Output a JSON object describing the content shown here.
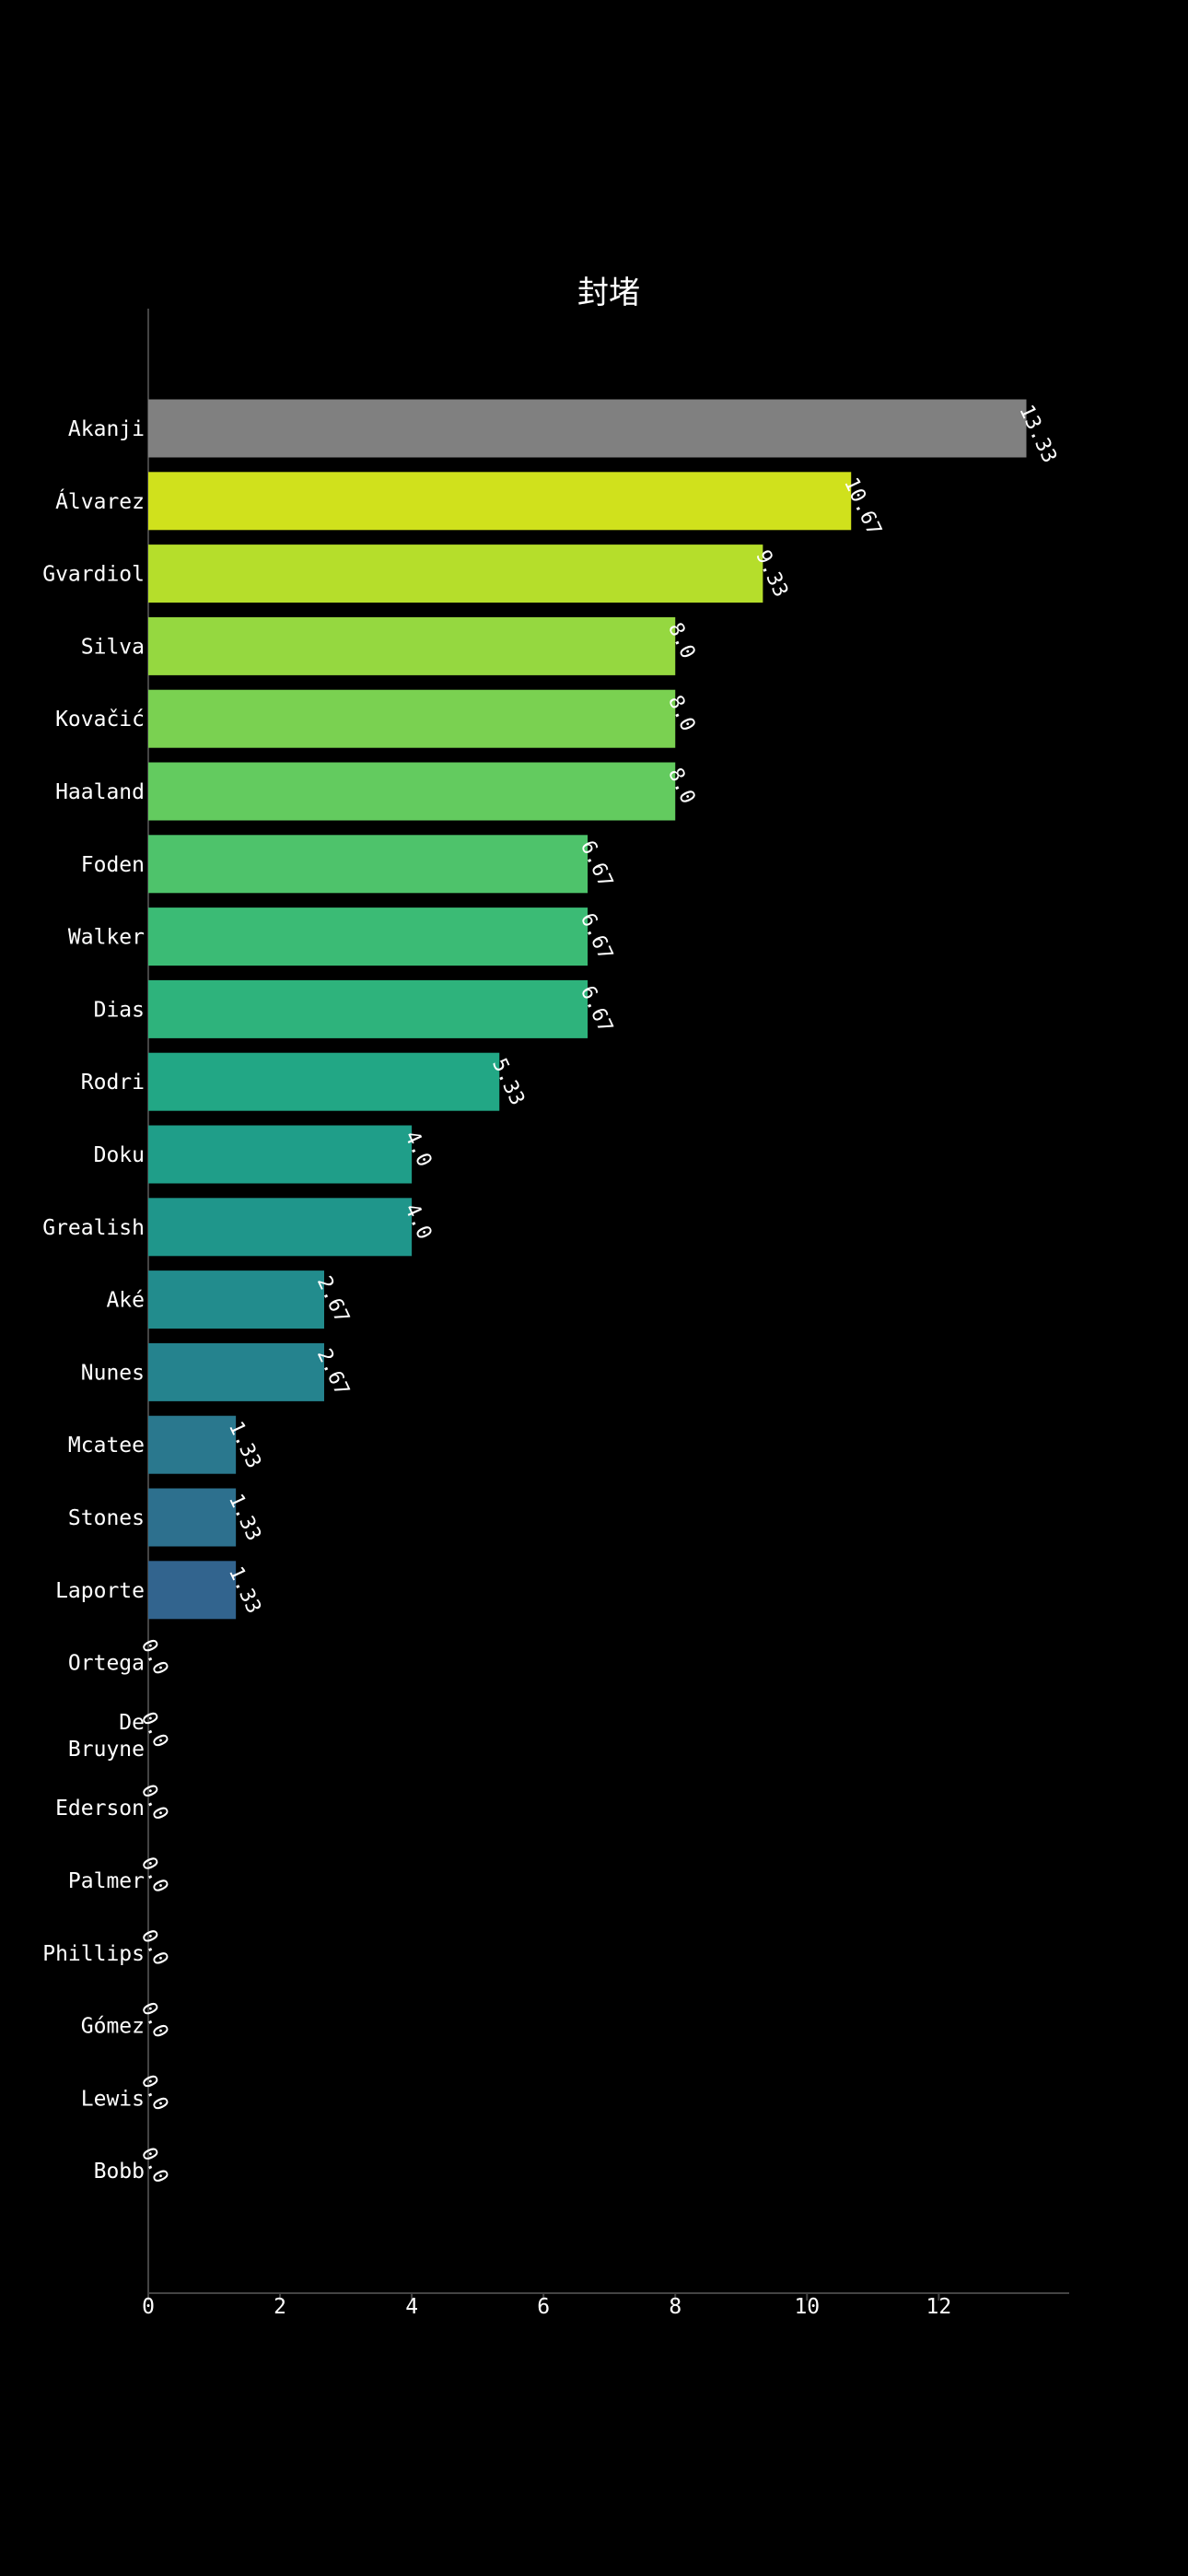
{
  "chart_data": {
    "type": "bar",
    "orientation": "horizontal",
    "title": "封堵",
    "xlabel": "",
    "ylabel": "",
    "xlim": [
      0,
      13.98
    ],
    "xticks": [
      0,
      2,
      4,
      6,
      8,
      10,
      12
    ],
    "grid": false,
    "categories": [
      "Akanji",
      "Álvarez",
      "Gvardiol",
      "Silva",
      "Kovačić",
      "Haaland",
      "Foden",
      "Walker",
      "Dias",
      "Rodri",
      "Doku",
      "Grealish",
      "Aké",
      "Nunes",
      "Mcatee",
      "Stones",
      "Laporte",
      "Ortega",
      "De Bruyne",
      "Ederson",
      "Palmer",
      "Phillips",
      "Gómez",
      "Lewis",
      "Bobb"
    ],
    "values": [
      13.33,
      10.67,
      9.33,
      8.0,
      8.0,
      8.0,
      6.67,
      6.67,
      6.67,
      5.33,
      4.0,
      4.0,
      2.67,
      2.67,
      1.33,
      1.33,
      1.33,
      0.0,
      0.0,
      0.0,
      0.0,
      0.0,
      0.0,
      0.0,
      0.0
    ],
    "value_labels": [
      "13.33",
      "10.67",
      "9.33",
      "8.0",
      "8.0",
      "8.0",
      "6.67",
      "6.67",
      "6.67",
      "5.33",
      "4.0",
      "4.0",
      "2.67",
      "2.67",
      "1.33",
      "1.33",
      "1.33",
      "0.0",
      "0.0",
      "0.0",
      "0.0",
      "0.0",
      "0.0",
      "0.0",
      "0.0"
    ],
    "colors": [
      "#808080",
      "#d0e11c",
      "#b5de2b",
      "#95d840",
      "#7ad151",
      "#63cb5f",
      "#4ec36b",
      "#3bbb75",
      "#2eb37c",
      "#22a785",
      "#1f9e89",
      "#1f968b",
      "#228c8d",
      "#25838e",
      "#2a788e",
      "#2d708e",
      "#32648e",
      "#37598c",
      "#3e4a89",
      "#433e85",
      "#46327e",
      "#482576",
      "#481a6c",
      "#470e61",
      "#440154"
    ]
  }
}
